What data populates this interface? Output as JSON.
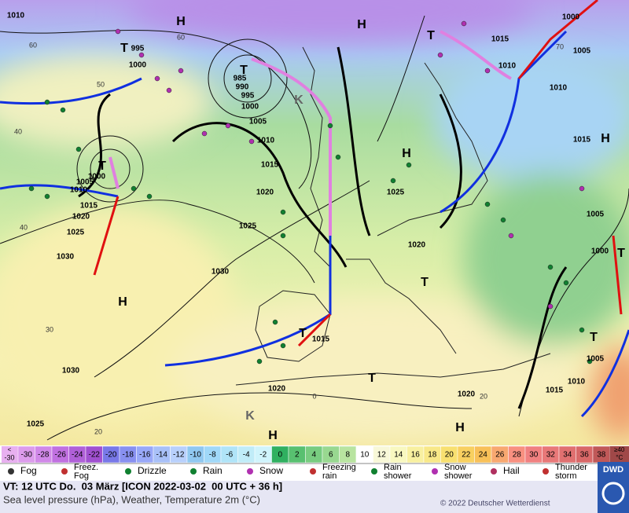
{
  "map": {
    "isobar_labels": [
      "1010",
      "995",
      "1000",
      "985",
      "990",
      "995",
      "1000",
      "1005",
      "1010",
      "1015",
      "1020",
      "1025",
      "1030",
      "1025",
      "1030",
      "1020",
      "1015",
      "1010",
      "1005",
      "1000",
      "1025",
      "1020",
      "1015",
      "1030",
      "1020",
      "1025",
      "1020",
      "1015",
      "1010",
      "1010",
      "1005",
      "1015",
      "1010",
      "1015",
      "1005",
      "1000",
      "1005",
      "1000"
    ],
    "centers": [
      "H",
      "H",
      "T",
      "T",
      "T",
      "T",
      "H",
      "H",
      "T",
      "T",
      "T",
      "H",
      "H",
      "H",
      "T",
      "T",
      "K",
      "K"
    ],
    "temperature_labels": [
      "60",
      "50",
      "40",
      "40",
      "30",
      "20",
      "0",
      "20",
      "60",
      "70"
    ]
  },
  "scale": {
    "under": [
      "<",
      "-30"
    ],
    "values": [
      -30,
      -28,
      -26,
      -24,
      -22,
      -20,
      -18,
      -16,
      -14,
      -12,
      -10,
      -8,
      -6,
      -4,
      -2,
      0,
      2,
      4,
      6,
      8,
      10,
      12,
      14,
      16,
      18,
      20,
      22,
      24,
      26,
      28,
      30,
      32,
      34,
      36,
      38
    ],
    "over": [
      "≥40",
      "°C"
    ],
    "colors": [
      "#dc9cec",
      "#d088e8",
      "#c070e0",
      "#b060d8",
      "#a050d0",
      "#7878e8",
      "#8890f0",
      "#98a8f8",
      "#a8c0f8",
      "#b8d0fc",
      "#90c8f0",
      "#a0d8f8",
      "#b0e4f8",
      "#c0ecf8",
      "#d0f4fc",
      "#30b060",
      "#58c070",
      "#78cc80",
      "#98d890",
      "#b8e4a0",
      "#ffffff",
      "#f8f8d8",
      "#f8f8c0",
      "#f8f0a0",
      "#f8e888",
      "#f8e070",
      "#f8d060",
      "#f8c058",
      "#f8a870",
      "#f89080",
      "#f08080",
      "#e87878",
      "#e07070",
      "#d86868",
      "#c05858"
    ],
    "under_color": "#e8b0f0",
    "over_color": "#a04848"
  },
  "legend": [
    "Fog",
    "Freez. Fog",
    "Drizzle",
    "Rain",
    "Snow",
    "Freezing rain",
    "Rain shower",
    "Snow shower",
    "Hail",
    "Thunder storm"
  ],
  "footer": {
    "valid_time": "VT: 12 UTC Do.  03 März [ICON 2022-03-02  00 UTC + 36 h]",
    "description": "Sea level pressure (hPa), Weather, Temperature 2m (°C)",
    "copyright": "© 2022 Deutscher Wetterdienst",
    "logo": "DWD"
  }
}
